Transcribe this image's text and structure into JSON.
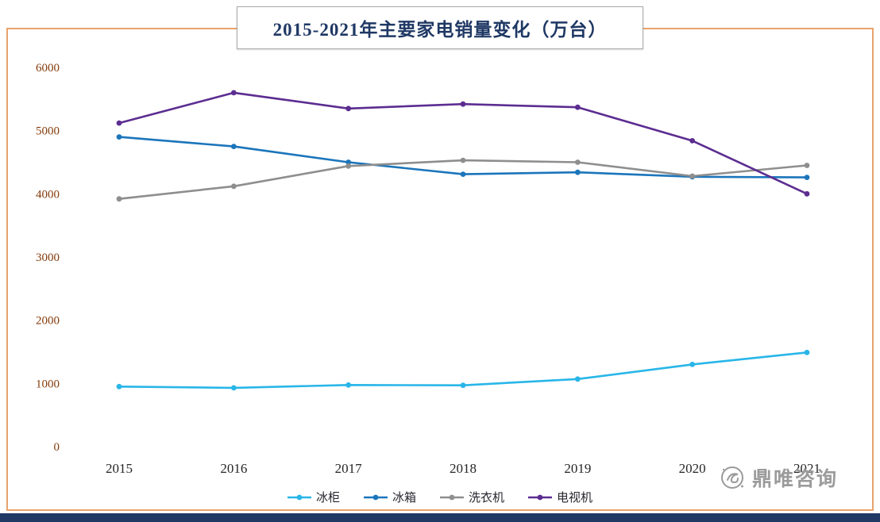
{
  "title": "2015-2021年主要家电销量变化（万台）",
  "watermark": {
    "text": "鼎唯咨询"
  },
  "colors": {
    "frame_border": "#E9A36B",
    "title_text": "#1F3864",
    "axis_y_label": "#843C0C",
    "axis_x_label": "#262626",
    "bottom_bar": "#1F3864",
    "watermark": "#9B9B9B"
  },
  "chart_data": {
    "type": "line",
    "title": "2015-2021年主要家电销量变化（万台）",
    "x": [
      2015,
      2016,
      2017,
      2018,
      2019,
      2020,
      2021
    ],
    "series": [
      {
        "name": "冰柜",
        "color": "#29B6E8",
        "values": [
          950,
          930,
          975,
          970,
          1070,
          1300,
          1490
        ]
      },
      {
        "name": "冰箱",
        "color": "#1B75BB",
        "values": [
          4900,
          4750,
          4500,
          4310,
          4340,
          4270,
          4260
        ]
      },
      {
        "name": "洗衣机",
        "color": "#8E8E8E",
        "values": [
          3920,
          4120,
          4440,
          4530,
          4500,
          4280,
          4450
        ]
      },
      {
        "name": "电视机",
        "color": "#5C2D91",
        "values": [
          5120,
          5600,
          5350,
          5420,
          5370,
          4840,
          4000
        ]
      }
    ],
    "xlabel": "",
    "ylabel": "",
    "ylim": [
      0,
      6000
    ],
    "yticks": [
      0,
      1000,
      2000,
      3000,
      4000,
      5000,
      6000
    ],
    "grid": false,
    "legend_position": "bottom"
  }
}
